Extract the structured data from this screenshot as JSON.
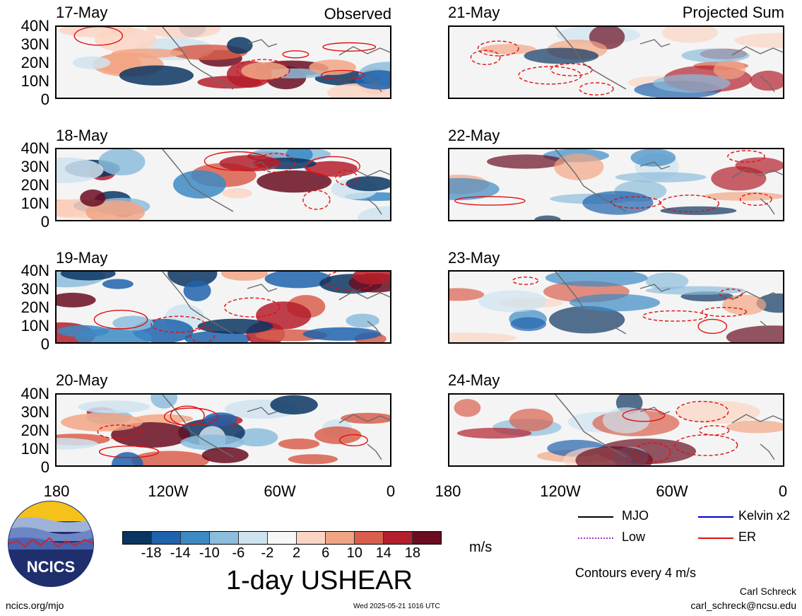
{
  "panels_observed": [
    {
      "date": "17-May",
      "tag": "Observed"
    },
    {
      "date": "18-May",
      "tag": ""
    },
    {
      "date": "19-May",
      "tag": ""
    },
    {
      "date": "20-May",
      "tag": ""
    }
  ],
  "panels_projected": [
    {
      "date": "21-May",
      "tag": "Projected Sum"
    },
    {
      "date": "22-May",
      "tag": ""
    },
    {
      "date": "23-May",
      "tag": ""
    },
    {
      "date": "24-May",
      "tag": ""
    }
  ],
  "lat_labels": [
    "40N",
    "30N",
    "20N",
    "10N",
    "0"
  ],
  "lon_labels": [
    "180",
    "120W",
    "60W",
    "0"
  ],
  "colorbar": {
    "colors": [
      "#0b3561",
      "#1f63ad",
      "#3c8ac4",
      "#8cbddc",
      "#cfe3ef",
      "#f7f7f7",
      "#fbd5c3",
      "#f2a584",
      "#d85f4c",
      "#b41f2c",
      "#6a0d20"
    ],
    "tick_labels": [
      "-18",
      "-14",
      "-10",
      "-6",
      "-2",
      "2",
      "6",
      "10",
      "14",
      "18"
    ],
    "unit": "m/s",
    "title": "1-day USHEAR"
  },
  "legend": {
    "mjo": "MJO",
    "kelvin": "Kelvin x2",
    "low": "Low",
    "er": "ER",
    "mjo_color": "#000000",
    "kelvin_color": "#0000cc",
    "low_color": "#9933cc",
    "er_color": "#e01010",
    "contours_note": "Contours every 4 m/s"
  },
  "footer": {
    "site": "ncics.org/mjo",
    "timestamp": "Wed 2025-05-21 1016 UTC",
    "author": "Carl Schreck",
    "email": "carl_schreck@ncsu.edu",
    "logo_text": "NCICS"
  }
}
